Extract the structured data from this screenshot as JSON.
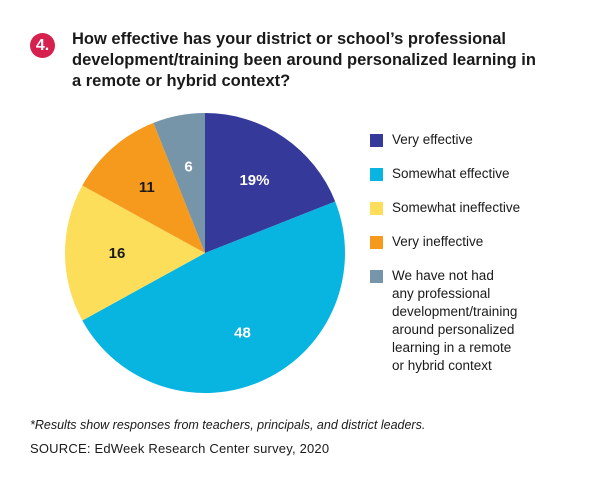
{
  "badge": "4.",
  "chart_data": {
    "type": "pie",
    "title": "How effective has your district or school’s professional development/training been around personalized learning in a remote or hybrid context?",
    "slices": [
      {
        "label": "Very effective",
        "value": 19,
        "display": "19%",
        "color": "#34399a",
        "text_color": "#ffffff"
      },
      {
        "label": "Somewhat effective",
        "value": 48,
        "display": "48",
        "color": "#08b4e0",
        "text_color": "#ffffff"
      },
      {
        "label": "Somewhat ineffective",
        "value": 16,
        "display": "16",
        "color": "#fcde5a",
        "text_color": "#1a1a1a"
      },
      {
        "label": "Very ineffective",
        "value": 11,
        "display": "11",
        "color": "#f59a1c",
        "text_color": "#1a1a1a"
      },
      {
        "label": "We have not had any professional development/training around personalized learning in a remote or hybrid context",
        "value": 6,
        "display": "6",
        "color": "#7695a8",
        "text_color": "#ffffff"
      }
    ],
    "legend_placement": "right"
  },
  "legend_lines": [
    [
      "Very effective"
    ],
    [
      "Somewhat effective"
    ],
    [
      "Somewhat ineffective"
    ],
    [
      "Very ineffective"
    ],
    [
      "We have not had",
      "any professional",
      "development/training",
      "around personalized",
      "learning in a remote",
      "or hybrid context"
    ]
  ],
  "footnote": "*Results show responses from teachers, principals, and district leaders.",
  "source": "SOURCE: EdWeek Research Center survey, 2020"
}
